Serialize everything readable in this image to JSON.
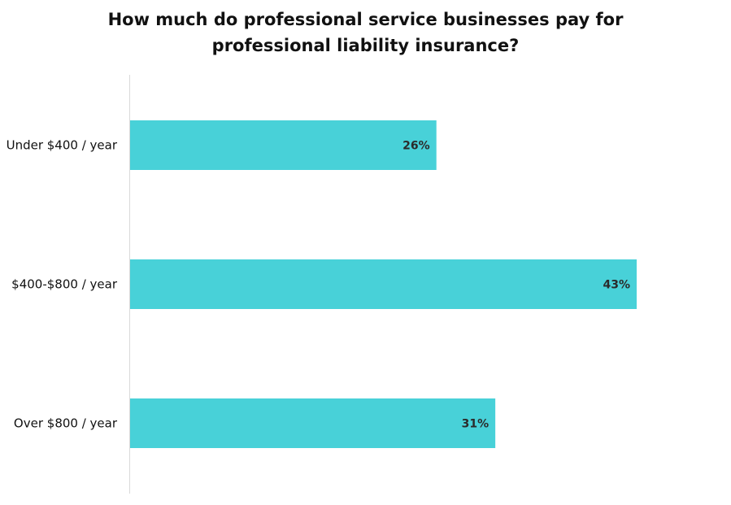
{
  "chart_data": {
    "type": "bar",
    "orientation": "horizontal",
    "title_lines": [
      "How much do professional service businesses pay for",
      "professional liability insurance?"
    ],
    "categories": [
      "Under $400 / year",
      "$400-$800 / year",
      "Over $800 / year"
    ],
    "values": [
      26,
      43,
      31
    ],
    "value_labels": [
      "26%",
      "43%",
      "31%"
    ],
    "xlim": [
      0,
      43
    ],
    "grid": false,
    "legend": "none",
    "bar_color": "#48D1D8",
    "axis_color": "#d9d9d9"
  }
}
